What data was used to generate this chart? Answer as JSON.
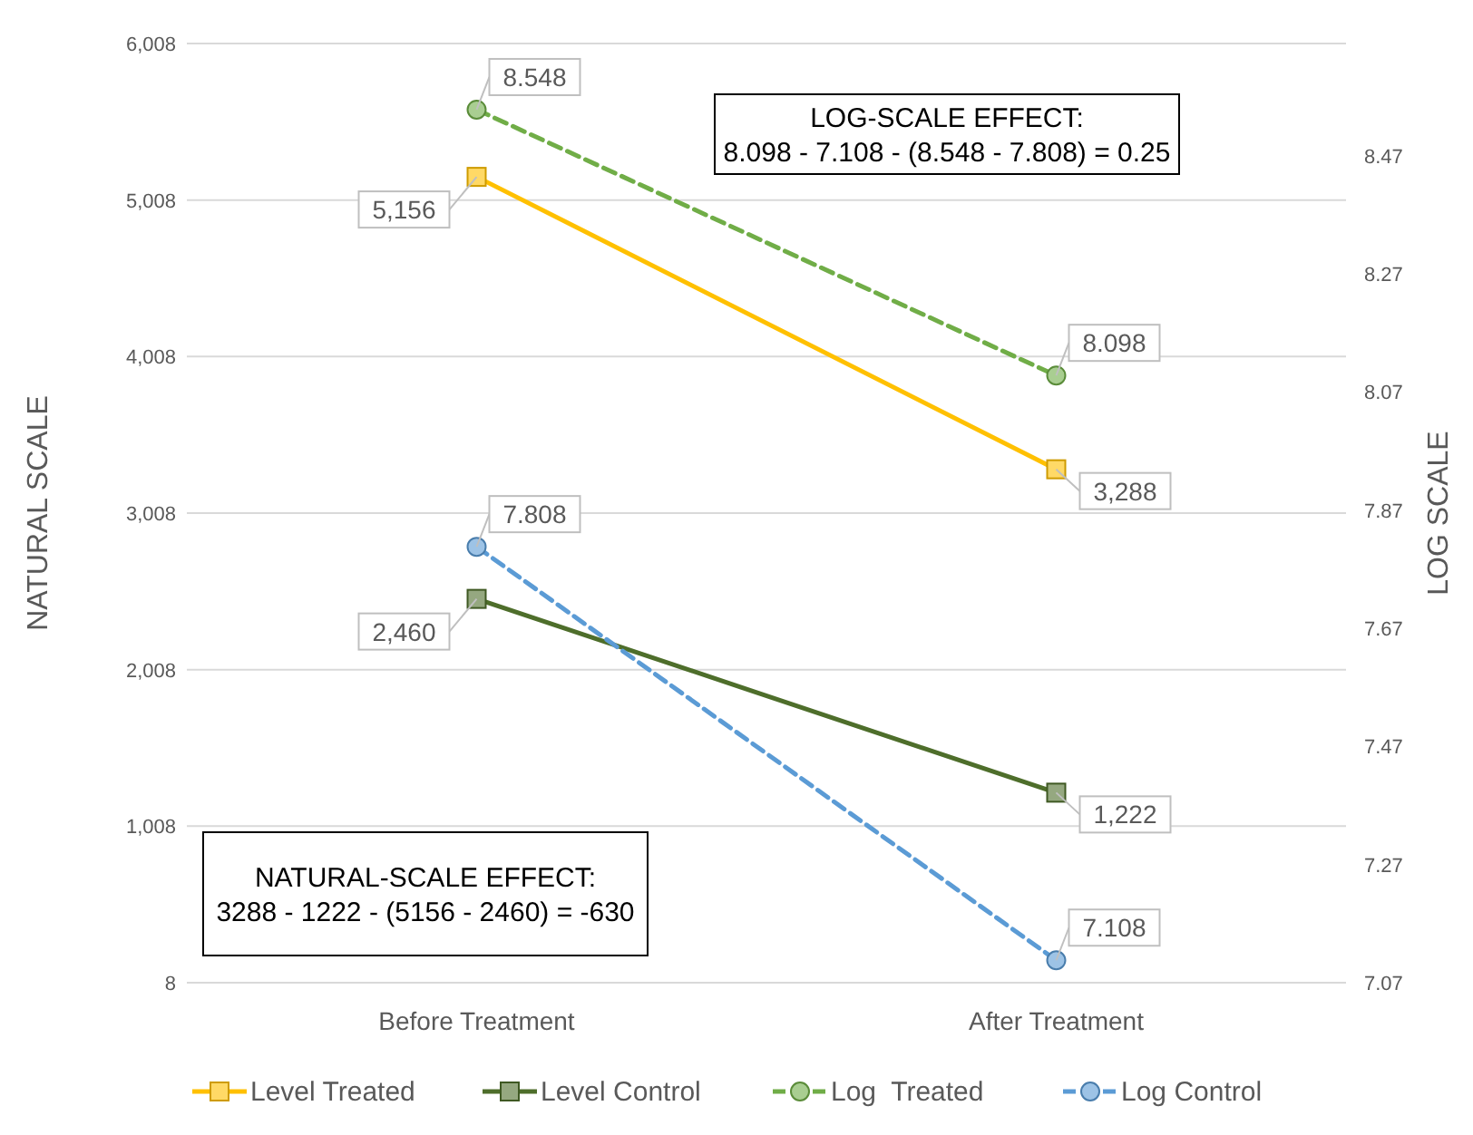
{
  "chart_data": {
    "type": "line",
    "categories": [
      "Before Treatment",
      "After Treatment"
    ],
    "ylabel": "NATURAL SCALE",
    "y2label": "LOG SCALE",
    "ylim": [
      8,
      6008
    ],
    "yticks": [
      8,
      {
        "value": 1008,
        "label": "1,008"
      },
      {
        "value": 2008,
        "label": "2,008"
      },
      {
        "value": 3008,
        "label": "3,008"
      },
      {
        "value": 4008,
        "label": "4,008"
      },
      {
        "value": 5008,
        "label": "5,008"
      },
      {
        "value": 6008,
        "label": "6,008"
      }
    ],
    "y2lim": [
      7.07,
      8.66
    ],
    "y2ticks": [
      7.07,
      7.27,
      7.47,
      7.67,
      7.87,
      8.07,
      8.27,
      8.47
    ],
    "grid": "y",
    "legend": "bottom",
    "series": [
      {
        "name": "Level Treated",
        "color": "#ffc000",
        "values": [
          5156,
          3288
        ],
        "value_labels": [
          "5,156",
          "3,288"
        ],
        "marker": "square",
        "line_style": "solid"
      },
      {
        "name": "Level Control",
        "color": "#4e6e2b",
        "values": [
          2460,
          1222
        ],
        "value_labels": [
          "2,460",
          "1,222"
        ],
        "marker": "square",
        "line_style": "solid"
      },
      {
        "name": "Log  Treated",
        "color": "#70ad47",
        "values": [
          8.548,
          8.098
        ],
        "value_labels": [
          "8.548",
          "8.098"
        ],
        "marker": "circle",
        "line_style": "dashed",
        "axis": "y2"
      },
      {
        "name": "Log Control",
        "color": "#5b9bd5",
        "values": [
          7.808,
          7.108
        ],
        "value_labels": [
          "7.808",
          "7.108"
        ],
        "marker": "circle",
        "line_style": "dashed",
        "axis": "y2"
      }
    ],
    "annotations": [
      "LOG-SCALE EFFECT:\n8.098 - 7.108 - (8.548 - 7.808) = 0.25",
      "NATURAL-SCALE EFFECT:\n3288 - 1222 - (5156 - 2460) = -630"
    ]
  }
}
